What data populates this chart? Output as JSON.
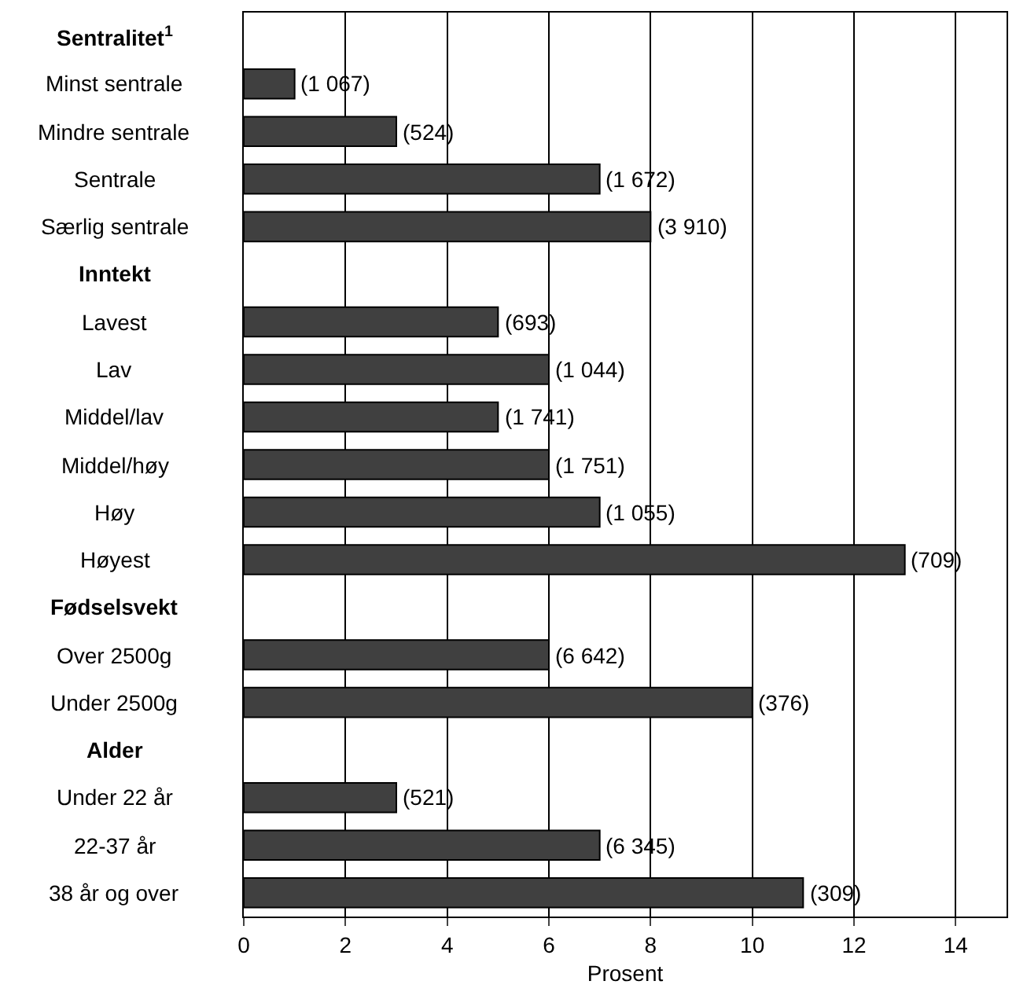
{
  "chart_data": {
    "type": "bar",
    "orientation": "horizontal",
    "xlabel": "Prosent",
    "categories": [
      "Sentralitet$^{1}$",
      "Minst sentrale",
      "Mindre sentrale",
      "Sentrale",
      "Særlig sentrale",
      "Inntekt",
      "Lavest",
      "Lav",
      "Middel/lav",
      "Middel/høy",
      "Høy",
      "Høyest",
      "Fødselsvekt",
      "Over 2500g",
      "Under 2500g",
      "Alder",
      "Under 22 år",
      "22-37 år",
      "38 år og over"
    ],
    "values": [
      null,
      1,
      3,
      7,
      8,
      null,
      5,
      6,
      5,
      6,
      7,
      13,
      null,
      6,
      10,
      null,
      3,
      7,
      11
    ],
    "annotations": [
      {
        "text": "(1 067)",
        "x": 1,
        "y": "Minst sentrale"
      },
      {
        "text": "(524)",
        "x": 3,
        "y": "Mindre sentrale"
      },
      {
        "text": "(1 672)",
        "x": 7,
        "y": "Sentrale"
      },
      {
        "text": "(3 910)",
        "x": 8,
        "y": "Særlig sentrale"
      },
      {
        "text": "(693)",
        "x": 5,
        "y": "Lavest"
      },
      {
        "text": "(1 044)",
        "x": 6,
        "y": "Lav"
      },
      {
        "text": "(1 741)",
        "x": 5,
        "y": "Middel/lav"
      },
      {
        "text": "(1 751)",
        "x": 6,
        "y": "Middel/høy"
      },
      {
        "text": "(1 055)",
        "x": 7,
        "y": "Høy"
      },
      {
        "text": "(709)",
        "x": 13,
        "y": "Høyest"
      },
      {
        "text": "(6 642)",
        "x": 6,
        "y": "Over 2500g"
      },
      {
        "text": "(376)",
        "x": 10,
        "y": "Under 2500g"
      },
      {
        "text": "(521)",
        "x": 3,
        "y": "Under 22 år"
      },
      {
        "text": "(6 345)",
        "x": 7,
        "y": "22-37 år"
      },
      {
        "text": "(309)",
        "x": 11,
        "y": "38 år og over"
      }
    ],
    "color": "#404040",
    "xlim": [
      0,
      15
    ],
    "xticks": [
      0,
      2,
      4,
      6,
      8,
      10,
      12,
      14
    ],
    "grid": "x"
  }
}
